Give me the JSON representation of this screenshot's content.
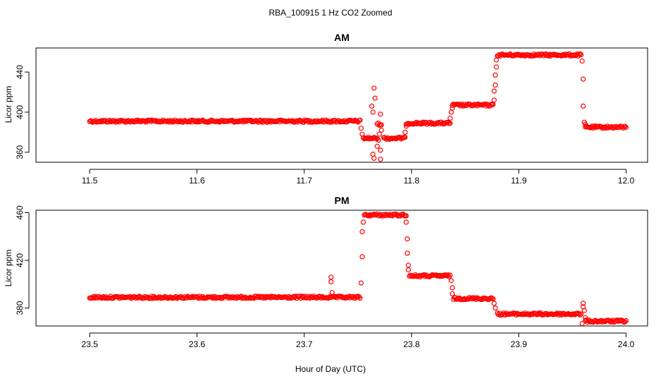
{
  "chart_data": {
    "type": "scatter",
    "title": "RBA_100915  1 Hz CO2 Zoomed",
    "xlabel": "Hour of Day (UTC)",
    "marker_color": "#ff0000",
    "panels": [
      {
        "name": "AM",
        "title": "AM",
        "ylabel": "Licor ppm",
        "xlim": [
          11.45,
          12.02
        ],
        "ylim": [
          350,
          464
        ],
        "xticks": [
          11.5,
          11.6,
          11.7,
          11.8,
          11.9,
          12.0
        ],
        "xtick_labels": [
          "11.5",
          "11.6",
          "11.7",
          "11.8",
          "11.9",
          "12.0"
        ],
        "yticks": [
          360,
          400,
          440
        ],
        "ytick_labels": [
          "360",
          "400",
          "440"
        ],
        "segments": [
          {
            "x0": 11.5,
            "x1": 11.752,
            "y": 391
          },
          {
            "x0": 11.755,
            "x1": 11.768,
            "y": 374
          },
          {
            "x0": 11.768,
            "x1": 11.772,
            "y": 388
          },
          {
            "x0": 11.774,
            "x1": 11.794,
            "y": 374
          },
          {
            "x0": 11.795,
            "x1": 11.836,
            "y": 389
          },
          {
            "x0": 11.838,
            "x1": 11.876,
            "y": 407
          },
          {
            "x0": 11.88,
            "x1": 11.958,
            "y": 457
          },
          {
            "x0": 11.962,
            "x1": 12.0,
            "y": 385
          }
        ],
        "transitions": [
          {
            "x": 11.753,
            "y": 384
          },
          {
            "x": 11.754,
            "y": 378
          },
          {
            "x": 11.763,
            "y": 406
          },
          {
            "x": 11.764,
            "y": 400
          },
          {
            "x": 11.765,
            "y": 424
          },
          {
            "x": 11.766,
            "y": 414
          },
          {
            "x": 11.764,
            "y": 358
          },
          {
            "x": 11.765,
            "y": 354
          },
          {
            "x": 11.768,
            "y": 366
          },
          {
            "x": 11.769,
            "y": 372
          },
          {
            "x": 11.77,
            "y": 378
          },
          {
            "x": 11.771,
            "y": 398
          },
          {
            "x": 11.771,
            "y": 362
          },
          {
            "x": 11.771,
            "y": 353
          },
          {
            "x": 11.772,
            "y": 382
          },
          {
            "x": 11.794,
            "y": 380
          },
          {
            "x": 11.795,
            "y": 386
          },
          {
            "x": 11.836,
            "y": 394
          },
          {
            "x": 11.837,
            "y": 400
          },
          {
            "x": 11.838,
            "y": 404
          },
          {
            "x": 11.877,
            "y": 412
          },
          {
            "x": 11.877,
            "y": 421
          },
          {
            "x": 11.878,
            "y": 427
          },
          {
            "x": 11.878,
            "y": 437
          },
          {
            "x": 11.879,
            "y": 445
          },
          {
            "x": 11.879,
            "y": 452
          },
          {
            "x": 11.959,
            "y": 451
          },
          {
            "x": 11.96,
            "y": 433
          },
          {
            "x": 11.96,
            "y": 406
          },
          {
            "x": 11.961,
            "y": 390
          },
          {
            "x": 11.962,
            "y": 388
          }
        ]
      },
      {
        "name": "PM",
        "title": "PM",
        "ylabel": "Licor ppm",
        "xlim": [
          23.45,
          24.02
        ],
        "ylim": [
          365,
          462
        ],
        "xticks": [
          23.5,
          23.6,
          23.7,
          23.8,
          23.9,
          24.0
        ],
        "xtick_labels": [
          "23.5",
          "23.6",
          "23.7",
          "23.8",
          "23.9",
          "24.0"
        ],
        "yticks": [
          380,
          420,
          460
        ],
        "ytick_labels": [
          "380",
          "420",
          "460"
        ],
        "segments": [
          {
            "x0": 23.5,
            "x1": 23.752,
            "y": 389
          },
          {
            "x0": 23.756,
            "x1": 23.795,
            "y": 458
          },
          {
            "x0": 23.798,
            "x1": 23.836,
            "y": 407
          },
          {
            "x0": 23.839,
            "x1": 23.876,
            "y": 388
          },
          {
            "x0": 23.88,
            "x1": 23.958,
            "y": 375
          },
          {
            "x0": 23.962,
            "x1": 24.0,
            "y": 369
          }
        ],
        "transitions": [
          {
            "x": 23.725,
            "y": 406
          },
          {
            "x": 23.725,
            "y": 402
          },
          {
            "x": 23.726,
            "y": 393
          },
          {
            "x": 23.753,
            "y": 401
          },
          {
            "x": 23.754,
            "y": 423
          },
          {
            "x": 23.754,
            "y": 444
          },
          {
            "x": 23.755,
            "y": 452
          },
          {
            "x": 23.795,
            "y": 452
          },
          {
            "x": 23.796,
            "y": 438
          },
          {
            "x": 23.796,
            "y": 426
          },
          {
            "x": 23.797,
            "y": 416
          },
          {
            "x": 23.797,
            "y": 412
          },
          {
            "x": 23.837,
            "y": 403
          },
          {
            "x": 23.838,
            "y": 397
          },
          {
            "x": 23.838,
            "y": 392
          },
          {
            "x": 23.877,
            "y": 384
          },
          {
            "x": 23.878,
            "y": 380
          },
          {
            "x": 23.959,
            "y": 367
          },
          {
            "x": 23.96,
            "y": 384
          },
          {
            "x": 23.96,
            "y": 381
          },
          {
            "x": 23.961,
            "y": 378
          },
          {
            "x": 23.962,
            "y": 372
          }
        ]
      }
    ]
  }
}
